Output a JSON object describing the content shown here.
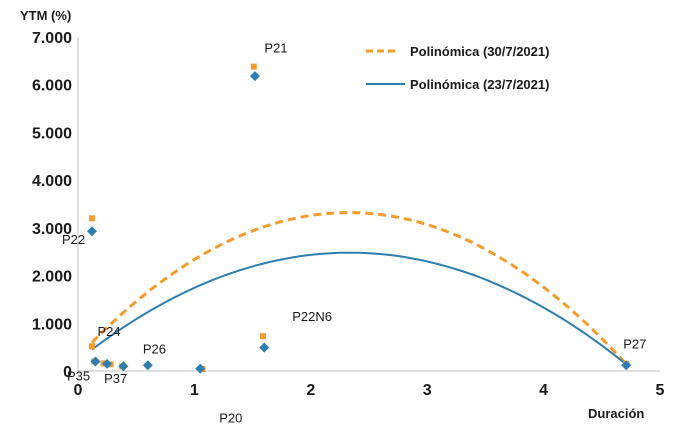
{
  "chart_data": {
    "type": "scatter",
    "xlabel": "Duración",
    "ylabel": "YTM (%)",
    "xlim": [
      0,
      5
    ],
    "ylim": [
      0,
      7
    ],
    "x_ticks": [
      "0",
      "1",
      "2",
      "3",
      "4",
      "5"
    ],
    "y_ticks": [
      "0",
      "1.000",
      "2.000",
      "3.000",
      "4.000",
      "5.000",
      "6.000",
      "7.000"
    ],
    "grid": false,
    "legend_position": "top-right",
    "series": [
      {
        "name": "30/7/2021",
        "marker": "square",
        "color": "#F39C2D",
        "points": [
          {
            "x": 0.12,
            "y": 3.2
          },
          {
            "x": 0.12,
            "y": 0.52
          },
          {
            "x": 0.14,
            "y": 0.2
          },
          {
            "x": 0.22,
            "y": 0.16
          },
          {
            "x": 0.28,
            "y": 0.14
          },
          {
            "x": 0.38,
            "y": 0.1
          },
          {
            "x": 1.07,
            "y": 0.04
          },
          {
            "x": 1.51,
            "y": 6.38
          },
          {
            "x": 1.59,
            "y": 0.73
          },
          {
            "x": 4.71,
            "y": 0.15
          }
        ]
      },
      {
        "name": "23/7/2021",
        "marker": "diamond",
        "color": "#2E7FB0",
        "points": [
          {
            "x": 0.12,
            "y": 2.93
          },
          {
            "x": 0.15,
            "y": 0.2
          },
          {
            "x": 0.25,
            "y": 0.15
          },
          {
            "x": 0.39,
            "y": 0.1
          },
          {
            "x": 0.6,
            "y": 0.12
          },
          {
            "x": 1.05,
            "y": 0.05
          },
          {
            "x": 1.52,
            "y": 6.18
          },
          {
            "x": 1.6,
            "y": 0.49
          },
          {
            "x": 4.71,
            "y": 0.12
          }
        ]
      }
    ],
    "trendlines": [
      {
        "name": "Polinómica (30/7/2021)",
        "style": "dashed",
        "color": "#F39C2D",
        "points": [
          [
            0.12,
            0.6
          ],
          [
            2.3,
            3.32
          ],
          [
            4.72,
            0.12
          ]
        ]
      },
      {
        "name": "Polinómica (23/7/2021)",
        "style": "solid",
        "color": "#2E7FB0",
        "points": [
          [
            0.12,
            0.45
          ],
          [
            2.35,
            2.48
          ],
          [
            4.72,
            0.12
          ]
        ]
      }
    ],
    "point_labels": [
      {
        "text": "P21",
        "x": 1.55,
        "y": 6.38
      },
      {
        "text": "P22",
        "x": 0.12,
        "y": 2.93
      },
      {
        "text": "P22N6",
        "x": 1.6,
        "y": 0.73
      },
      {
        "text": "P24",
        "x": 0.15,
        "y": 0.52
      },
      {
        "text": "P26",
        "x": 0.6,
        "y": 0.12
      },
      {
        "text": "P35",
        "x": 0.12,
        "y": 0.2
      },
      {
        "text": "P37",
        "x": 0.25,
        "y": 0.15
      },
      {
        "text": "P20",
        "x": 1.05,
        "y": 0.05
      },
      {
        "text": "P27",
        "x": 4.71,
        "y": 0.12
      }
    ]
  }
}
